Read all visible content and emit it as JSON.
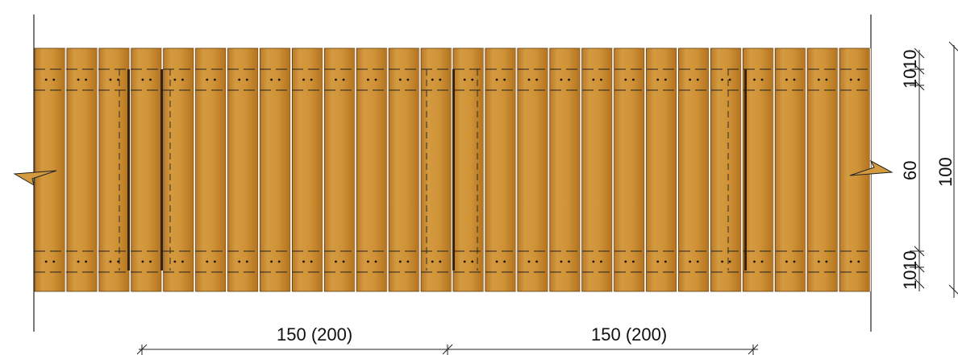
{
  "board_count": 26,
  "colors": {
    "wood_light": "#d69a3f",
    "wood_mid": "#c9892f",
    "wood_dark": "#a8691c",
    "joint": "#3a2208",
    "line": "#222222"
  },
  "dimensions": {
    "spacing_left": "150 (200)",
    "spacing_right": "150 (200)",
    "height_top_a": "10",
    "height_top_b": "10",
    "height_middle": "60",
    "height_bottom_a": "10",
    "height_bottom_b": "10",
    "height_total": "100"
  }
}
